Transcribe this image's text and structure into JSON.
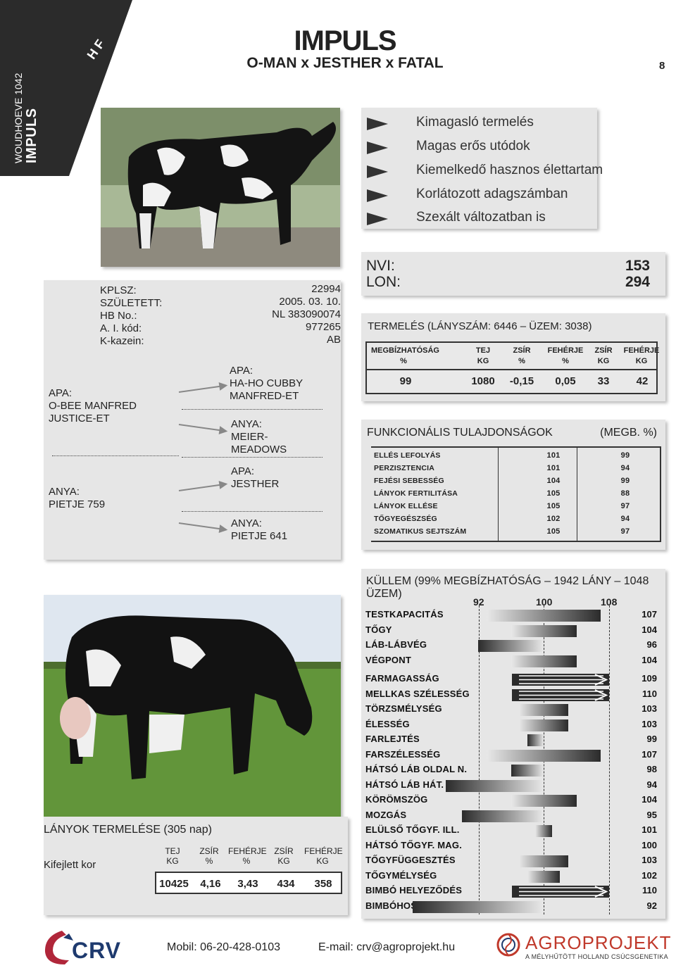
{
  "corner": {
    "line1": "WOUDHOEVE 1042",
    "line2": "IMPULS",
    "breed": "H F"
  },
  "header": {
    "title": "IMPULS",
    "pedigree": "O-MAN x JESTHER x FATAL",
    "page_number": "8"
  },
  "bullets": [
    "Kimagasló termelés",
    "Magas erős utódok",
    "Kiemelkedő hasznos élettartam",
    "Korlátozott adagszámban",
    "Szexált változatban is"
  ],
  "indexes": {
    "nvi_label": "NVI:",
    "nvi_value": "153",
    "lon_label": "LON:",
    "lon_value": "294"
  },
  "info": {
    "labels": [
      "KPLSZ:",
      "SZÜLETETT:",
      "HB No.:",
      "A. I. kód:",
      "K-kazein:"
    ],
    "values": [
      "22994",
      "2005. 03. 10.",
      "NL 383090074",
      "977265",
      "AB"
    ]
  },
  "pedigree": {
    "sire_label": "APA:",
    "sire_name_1": "O-BEE MANFRED",
    "sire_name_2": "JUSTICE-ET",
    "dam_label": "ANYA:",
    "dam_name": "PIETJE 759",
    "ss_label": "APA:",
    "ss_name_1": "HA-HO CUBBY",
    "ss_name_2": "MANFRED-ET",
    "sd_label": "ANYA:",
    "sd_name_1": "MEIER-",
    "sd_name_2": "MEADOWS",
    "ds_label": "APA:",
    "ds_name": "JESTHER",
    "dd_label": "ANYA:",
    "dd_name": "PIETJE 641"
  },
  "production": {
    "title": "TERMELÉS (LÁNYSZÁM: 6446 – ÜZEM: 3038)",
    "headers": [
      [
        "MEGBÍZHATÓSÁG",
        "%"
      ],
      [
        "TEJ",
        "KG"
      ],
      [
        "ZSÍR",
        "%"
      ],
      [
        "FEHÉRJE",
        "%"
      ],
      [
        "ZSÍR",
        "KG"
      ],
      [
        "FEHÉRJE",
        "KG"
      ]
    ],
    "values": [
      "99",
      "1080",
      "-0,15",
      "0,05",
      "33",
      "42"
    ]
  },
  "functional": {
    "title": "FUNKCIONÁLIS TULAJDONSÁGOK",
    "reliability_label": "(MEGB. %)",
    "rows": [
      {
        "name": "ELLÉS LEFOLYÁS",
        "value": "101",
        "reliability": "99"
      },
      {
        "name": "PERZISZTENCIA",
        "value": "101",
        "reliability": "94"
      },
      {
        "name": "FEJÉSI SEBESSÉG",
        "value": "104",
        "reliability": "99"
      },
      {
        "name": "LÁNYOK FERTILITÁSA",
        "value": "105",
        "reliability": "88"
      },
      {
        "name": "LÁNYOK ELLÉSE",
        "value": "105",
        "reliability": "97"
      },
      {
        "name": "TŐGYEGÉSZSÉG",
        "value": "102",
        "reliability": "94"
      },
      {
        "name": "SZOMATIKUS SEJTSZÁM",
        "value": "105",
        "reliability": "97"
      }
    ]
  },
  "daughters": {
    "title": "LÁNYOK TERMELÉSE (305 nap)",
    "row_label": "Kifejlett kor",
    "headers": [
      [
        "TEJ",
        "KG"
      ],
      [
        "ZSÍR",
        "%"
      ],
      [
        "FEHÉRJE",
        "%"
      ],
      [
        "ZSÍR",
        "KG"
      ],
      [
        "FEHÉRJE",
        "KG"
      ]
    ],
    "values": [
      "10425",
      "4,16",
      "3,43",
      "434",
      "358"
    ]
  },
  "conformation": {
    "title": "KÜLLEM (99% MEGBÍZHATÓSÁG – 1942 LÁNY – 1048 ÜZEM)",
    "scale": [
      "92",
      "100",
      "108"
    ],
    "traits": [
      {
        "name": "TESTKAPACITÁS",
        "value": 107
      },
      {
        "name": "TŐGY",
        "value": 104
      },
      {
        "name": "LÁB-LÁBVÉG",
        "value": 96
      },
      {
        "name": "VÉGPONT",
        "value": 104
      },
      {
        "name": "FARMAGASSÁG",
        "value": 109
      },
      {
        "name": "MELLKAS SZÉLESSÉG",
        "value": 110
      },
      {
        "name": "TÖRZSMÉLYSÉG",
        "value": 103
      },
      {
        "name": "ÉLESSÉG",
        "value": 103
      },
      {
        "name": "FARLEJTÉS",
        "value": 99
      },
      {
        "name": "FARSZÉLESSÉG",
        "value": 107
      },
      {
        "name": "HÁTSÓ LÁB OLDAL N.",
        "value": 98
      },
      {
        "name": "HÁTSÓ LÁB HÁT. N.",
        "value": 94
      },
      {
        "name": "KÖRÖMSZÖG",
        "value": 104
      },
      {
        "name": "MOZGÁS",
        "value": 95
      },
      {
        "name": "ELÜLSŐ TŐGYF. ILL.",
        "value": 101
      },
      {
        "name": "HÁTSÓ TŐGYF. MAG.",
        "value": 100
      },
      {
        "name": "TŐGYFÜGGESZTÉS",
        "value": 103
      },
      {
        "name": "TŐGYMÉLYSÉG",
        "value": 102
      },
      {
        "name": "BIMBÓ HELYEZŐDÉS",
        "value": 110
      },
      {
        "name": "BIMBÓHOSSZ.",
        "value": 92
      }
    ]
  },
  "footer": {
    "mobile": "Mobil: 06-20-428-0103",
    "email": "E-mail: crv@agroprojekt.hu",
    "crv_logo_text": "CRV",
    "agro_logo_text": "AGROPROJEKT",
    "agro_tagline": "A MÉLYHŰTÖTT HOLLAND CSÚCSGENETIKA"
  },
  "colors": {
    "panel": "#e6e6e6",
    "dark": "#2b2b2b",
    "crv_red": "#b0263a",
    "crv_blue": "#1e3a6e",
    "agro_red": "#c0392b"
  }
}
